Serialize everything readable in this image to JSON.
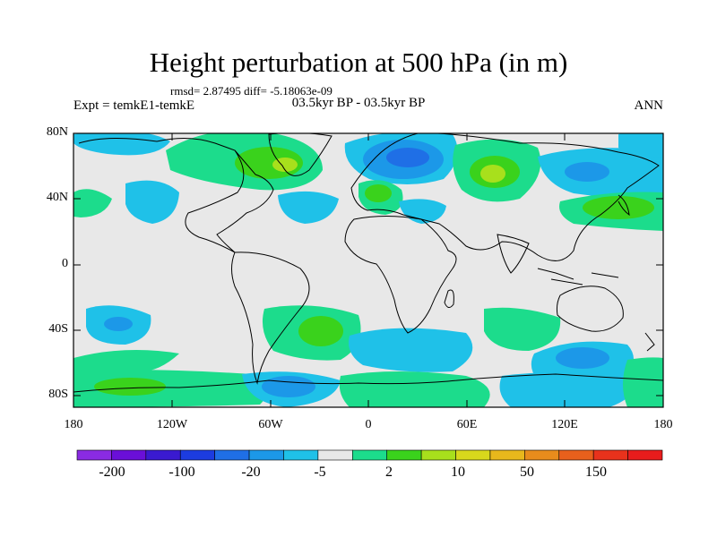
{
  "title": "Height perturbation at 500 hPa (in m)",
  "stats": "rmsd= 2.87495 diff= -5.18063e-09",
  "experiment": "Expt = temkE1-temkE",
  "period": "03.5kyr BP - 03.5kyr BP",
  "season": "ANN",
  "axes": {
    "y_ticks": [
      "80N",
      "40N",
      "0",
      "40S",
      "80S"
    ],
    "x_ticks": [
      "180",
      "120W",
      "60W",
      "0",
      "60E",
      "120E",
      "180"
    ]
  },
  "colorbar": {
    "colors": [
      "#8a2be2",
      "#6a0fd8",
      "#3a1ad0",
      "#1c3ce0",
      "#1f6fe6",
      "#1c98e8",
      "#1fc1e8",
      "#e8e8e8",
      "#1cdc8c",
      "#3ad21c",
      "#a8e01c",
      "#d8d81c",
      "#e8b81c",
      "#e88c1c",
      "#e8601c",
      "#e8321c",
      "#e81c1c"
    ],
    "labels": [
      "-200",
      "-100",
      "-20",
      "-5",
      "2",
      "10",
      "50",
      "150"
    ]
  },
  "anomaly_colors": {
    "positive": "#1cdc8c",
    "positive_strong": "#3ad21c",
    "positive_peak": "#a8e01c",
    "negative": "#1fc1e8",
    "negative_strong": "#1c98e8",
    "negative_peak": "#1f6fe6",
    "neutral": "#e8e8e8"
  }
}
